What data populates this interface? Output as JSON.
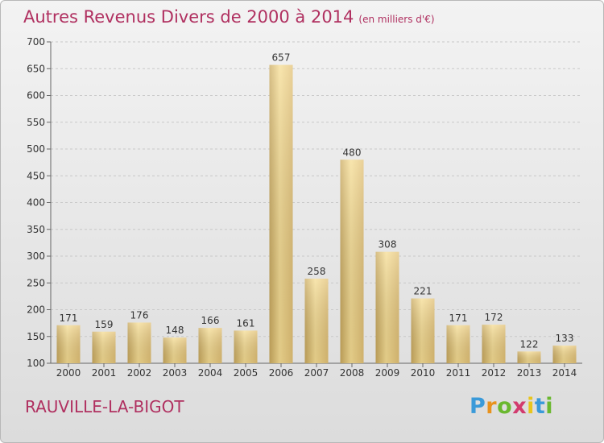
{
  "header": {
    "title": "Autres Revenus Divers de 2000 à 2014",
    "subtitle": "(en milliers d'€)"
  },
  "commune": "RAUVILLE-LA-BIGOT",
  "logo": {
    "letters": [
      "P",
      "r",
      "o",
      "x",
      "i",
      "t",
      "i"
    ],
    "colors": [
      "#3a9ad9",
      "#e8921d",
      "#6ab82f",
      "#d23b6e",
      "#e8c51d",
      "#3a9ad9",
      "#6ab82f"
    ]
  },
  "chart_data": {
    "type": "bar",
    "categories": [
      "2000",
      "2001",
      "2002",
      "2003",
      "2004",
      "2005",
      "2006",
      "2007",
      "2008",
      "2009",
      "2010",
      "2011",
      "2012",
      "2013",
      "2014"
    ],
    "values": [
      171,
      159,
      176,
      148,
      166,
      161,
      657,
      258,
      480,
      308,
      221,
      171,
      172,
      122,
      133
    ],
    "data_labels": [
      "171",
      "159",
      "176",
      "148",
      "166",
      "161",
      "657",
      "258",
      "480",
      "308",
      "221",
      "171",
      "172",
      "122",
      "133"
    ],
    "title": "Autres Revenus Divers de 2000 à 2014",
    "subtitle": "(en milliers d'€)",
    "ylim": [
      100,
      700
    ],
    "yticks": [
      100,
      150,
      200,
      250,
      300,
      350,
      400,
      450,
      500,
      550,
      600,
      650,
      700
    ],
    "grid": true,
    "bar_color": "#e6c474"
  }
}
